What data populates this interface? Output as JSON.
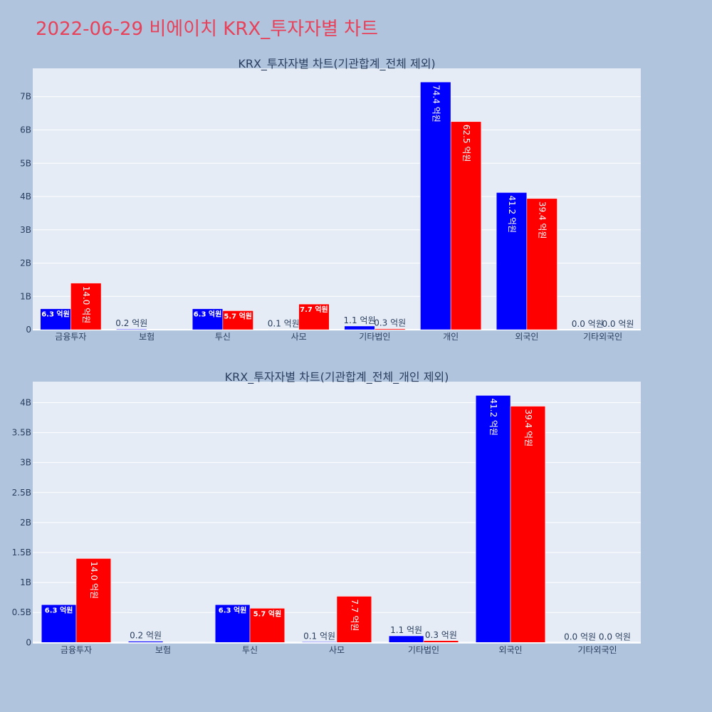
{
  "page_title": "2022-06-29 비에이치 KRX_투자자별 차트",
  "colors": {
    "background": "#b0c4de",
    "plot_background": "#e5ecf6",
    "title": "#e8415a",
    "text": "#2a3f5f",
    "buy": "#0000ff",
    "sell": "#ff0000"
  },
  "chart_data": [
    {
      "type": "bar",
      "title": "KRX_투자자별 차트(기관합계_전체 제외)",
      "categories": [
        "금융투자",
        "보험",
        "투신",
        "사모",
        "기타법인",
        "개인",
        "외국인",
        "기타외국인"
      ],
      "series": [
        {
          "color": "#0000ff",
          "values": [
            0.63,
            0.02,
            0.63,
            0.01,
            0.11,
            7.44,
            4.12,
            0.0
          ],
          "labels": [
            "6.3 억원",
            "0.2 억원",
            "6.3 억원",
            "0.1 억원",
            "1.1 억원",
            "74.4 억원",
            "41.2 억원",
            "0.0 억원"
          ]
        },
        {
          "color": "#ff0000",
          "values": [
            1.4,
            0.0,
            0.57,
            0.77,
            0.03,
            6.25,
            3.94,
            0.0
          ],
          "labels": [
            "14.0 억원",
            "",
            "5.7 억원",
            "7.7 억원",
            "0.3 억원",
            "62.5 억원",
            "39.4 억원",
            "0.0 억원"
          ]
        }
      ],
      "ylim": [
        -0.02,
        7.85
      ],
      "yticks": [
        0,
        1,
        2,
        3,
        4,
        5,
        6,
        7
      ],
      "yticklabels": [
        "0",
        "1B",
        "2B",
        "3B",
        "4B",
        "5B",
        "6B",
        "7B"
      ],
      "grid": true
    },
    {
      "type": "bar",
      "title": "KRX_투자자별 차트(기관합계_전체_개인 제외)",
      "categories": [
        "금융투자",
        "보험",
        "투신",
        "사모",
        "기타법인",
        "외국인",
        "기타외국인"
      ],
      "series": [
        {
          "color": "#0000ff",
          "values": [
            0.63,
            0.02,
            0.63,
            0.01,
            0.11,
            4.12,
            0.0
          ],
          "labels": [
            "6.3 억원",
            "0.2 억원",
            "6.3 억원",
            "0.1 억원",
            "1.1 억원",
            "41.2 억원",
            "0.0 억원"
          ]
        },
        {
          "color": "#ff0000",
          "values": [
            1.4,
            0.0,
            0.57,
            0.77,
            0.03,
            3.94,
            0.0
          ],
          "labels": [
            "14.0 억원",
            "",
            "5.7 억원",
            "7.7 억원",
            "0.3 억원",
            "39.4 억원",
            "0.0 억원"
          ]
        }
      ],
      "ylim": [
        -0.02,
        4.35
      ],
      "yticks": [
        0,
        0.5,
        1,
        1.5,
        2,
        2.5,
        3,
        3.5,
        4
      ],
      "yticklabels": [
        "0",
        "0.5B",
        "1B",
        "1.5B",
        "2B",
        "2.5B",
        "3B",
        "3.5B",
        "4B"
      ],
      "grid": true
    }
  ]
}
